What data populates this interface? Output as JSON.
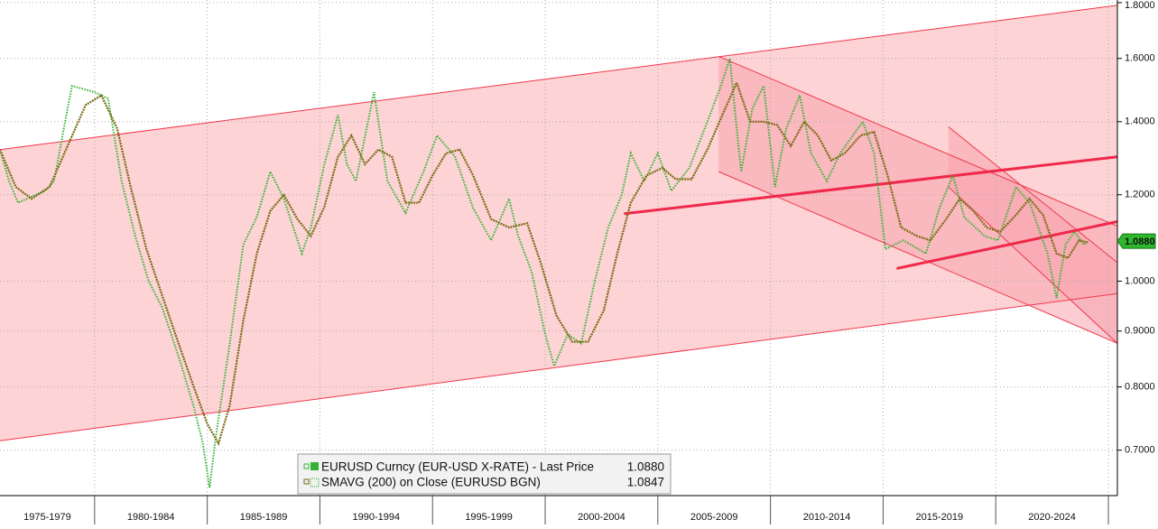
{
  "chart_data": {
    "type": "line",
    "ylog": true,
    "grid": true,
    "xlim": [
      1975.8,
      2025.4
    ],
    "ylim": [
      0.636,
      1.81
    ],
    "yticks": [
      {
        "value": 0.7,
        "label": "0.7000"
      },
      {
        "value": 0.8,
        "label": "0.8000"
      },
      {
        "value": 0.9,
        "label": "0.9000"
      },
      {
        "value": 1.0,
        "label": "1.0000"
      },
      {
        "value": 1.2,
        "label": "1.2000"
      },
      {
        "value": 1.4,
        "label": "1.4000"
      },
      {
        "value": 1.6,
        "label": "1.6000"
      },
      {
        "value": 1.8,
        "label": "1.8000"
      }
    ],
    "x_bands": [
      {
        "from": 1975,
        "to": 1980,
        "label": "1975-1979"
      },
      {
        "from": 1980,
        "to": 1985,
        "label": "1980-1984"
      },
      {
        "from": 1985,
        "to": 1990,
        "label": "1985-1989"
      },
      {
        "from": 1990,
        "to": 1995,
        "label": "1990-1994"
      },
      {
        "from": 1995,
        "to": 2000,
        "label": "1995-1999"
      },
      {
        "from": 2000,
        "to": 2005,
        "label": "2000-2004"
      },
      {
        "from": 2005,
        "to": 2010,
        "label": "2005-2009"
      },
      {
        "from": 2010,
        "to": 2015,
        "label": "2010-2014"
      },
      {
        "from": 2015,
        "to": 2020,
        "label": "2015-2019"
      },
      {
        "from": 2020,
        "to": 2025,
        "label": "2020-2024"
      }
    ],
    "channels": [
      {
        "fill": "#fdd3d5",
        "color": "#f0384a",
        "upper": {
          "x": [
            1975.8,
            2025.4
          ],
          "values": [
            1.32,
            1.79
          ]
        },
        "lower": {
          "x": [
            1975.8,
            2025.4
          ],
          "values": [
            0.714,
            0.974
          ]
        }
      },
      {
        "fill": "#f7a3ad",
        "color": "#f0384a",
        "upper": {
          "x": [
            2007.7,
            2025.4
          ],
          "values": [
            1.607,
            1.123
          ]
        },
        "lower": {
          "x": [
            2007.7,
            2025.4
          ],
          "values": [
            1.26,
            0.877
          ]
        }
      },
      {
        "fill": "#f7a3ad",
        "color": "#f0384a",
        "upper": {
          "x": [
            2017.9,
            2025.4
          ],
          "values": [
            1.385,
            1.04
          ]
        },
        "lower": {
          "x": [
            2017.9,
            2025.4
          ],
          "values": [
            1.22,
            0.877
          ]
        }
      }
    ],
    "trend_lines": [
      {
        "color": "#f0284a",
        "x": [
          2003.5,
          2025.4
        ],
        "values": [
          1.153,
          1.3
        ]
      },
      {
        "color": "#f0284a",
        "x": [
          2015.6,
          2025.4
        ],
        "values": [
          1.027,
          1.134
        ]
      }
    ],
    "series": [
      {
        "name": "EURUSD Curncy (EUR-USD X-RATE) - Last Price",
        "color": "#33b233",
        "x": [
          1975.8,
          1976.2,
          1976.6,
          1977.8,
          1978.2,
          1978.8,
          1979.0,
          1980.0,
          1980.6,
          1981.2,
          1981.8,
          1982.4,
          1983.0,
          1983.8,
          1984.4,
          1984.8,
          1985.1,
          1985.4,
          1986.0,
          1986.6,
          1987.2,
          1987.8,
          1988.4,
          1989.2,
          1989.6,
          1990.2,
          1990.8,
          1991.2,
          1991.6,
          1992.4,
          1993.0,
          1993.8,
          1994.6,
          1995.2,
          1996.0,
          1996.8,
          1997.6,
          1998.4,
          1998.8,
          1999.4,
          2000.0,
          2000.4,
          2001.0,
          2001.6,
          2002.2,
          2002.8,
          2003.4,
          2003.8,
          2004.4,
          2005.0,
          2005.6,
          2006.4,
          2007.2,
          2007.8,
          2008.2,
          2008.5,
          2008.7,
          2009.2,
          2009.7,
          2010.2,
          2010.7,
          2011.3,
          2011.8,
          2012.5,
          2013.1,
          2014.1,
          2014.6,
          2015.1,
          2015.9,
          2016.9,
          2017.5,
          2018.1,
          2018.6,
          2019.5,
          2020.1,
          2020.9,
          2021.5,
          2022.3,
          2022.7,
          2023.1,
          2023.5,
          2023.9,
          2024.1
        ],
        "values": [
          1.32,
          1.235,
          1.18,
          1.21,
          1.235,
          1.44,
          1.51,
          1.49,
          1.47,
          1.235,
          1.1,
          1.0,
          0.946,
          0.844,
          0.767,
          0.711,
          0.647,
          0.725,
          0.877,
          1.08,
          1.145,
          1.26,
          1.19,
          1.06,
          1.12,
          1.28,
          1.42,
          1.28,
          1.235,
          1.49,
          1.235,
          1.155,
          1.26,
          1.36,
          1.3,
          1.167,
          1.09,
          1.19,
          1.1,
          1.02,
          0.894,
          0.836,
          0.894,
          0.877,
          1.0,
          1.12,
          1.2,
          1.31,
          1.235,
          1.31,
          1.21,
          1.27,
          1.4,
          1.51,
          1.6,
          1.38,
          1.26,
          1.44,
          1.51,
          1.22,
          1.38,
          1.48,
          1.31,
          1.235,
          1.31,
          1.4,
          1.31,
          1.07,
          1.09,
          1.06,
          1.167,
          1.25,
          1.145,
          1.1,
          1.09,
          1.22,
          1.18,
          1.06,
          0.965,
          1.08,
          1.11,
          1.08,
          1.088
        ],
        "last_value": 1.088,
        "last_value_label": "1.0880"
      },
      {
        "name": "SMAVG (200)  on Close (EURUSD BGN)",
        "color": "#7a6a12",
        "x": [
          1975.8,
          1976.5,
          1977.2,
          1978.0,
          1978.8,
          1979.6,
          1980.3,
          1981.0,
          1981.6,
          1982.3,
          1983.0,
          1983.7,
          1984.4,
          1985.0,
          1985.5,
          1986.0,
          1986.6,
          1987.2,
          1987.8,
          1988.4,
          1989.0,
          1989.6,
          1990.2,
          1990.8,
          1991.4,
          1992.0,
          1992.6,
          1993.2,
          1993.8,
          1994.4,
          1995.0,
          1995.6,
          1996.2,
          1996.8,
          1997.6,
          1998.4,
          1999.2,
          1999.8,
          2000.5,
          2001.2,
          2001.9,
          2002.6,
          2003.2,
          2003.8,
          2004.5,
          2005.2,
          2005.8,
          2006.5,
          2007.2,
          2007.8,
          2008.5,
          2009.1,
          2009.7,
          2010.3,
          2010.9,
          2011.5,
          2012.1,
          2012.7,
          2013.3,
          2014.0,
          2014.6,
          2015.2,
          2015.8,
          2016.5,
          2017.1,
          2017.8,
          2018.4,
          2019.0,
          2019.6,
          2020.2,
          2020.9,
          2021.5,
          2022.1,
          2022.7,
          2023.2,
          2023.7,
          2024.1
        ],
        "values": [
          1.32,
          1.22,
          1.19,
          1.22,
          1.33,
          1.45,
          1.48,
          1.38,
          1.22,
          1.07,
          0.97,
          0.88,
          0.8,
          0.74,
          0.71,
          0.77,
          0.92,
          1.06,
          1.16,
          1.2,
          1.14,
          1.1,
          1.17,
          1.3,
          1.36,
          1.28,
          1.32,
          1.3,
          1.18,
          1.18,
          1.25,
          1.31,
          1.32,
          1.25,
          1.14,
          1.12,
          1.13,
          1.04,
          0.93,
          0.88,
          0.88,
          0.94,
          1.06,
          1.18,
          1.25,
          1.27,
          1.24,
          1.24,
          1.32,
          1.41,
          1.52,
          1.4,
          1.4,
          1.39,
          1.33,
          1.4,
          1.36,
          1.29,
          1.31,
          1.36,
          1.37,
          1.25,
          1.12,
          1.1,
          1.09,
          1.14,
          1.19,
          1.16,
          1.12,
          1.11,
          1.15,
          1.19,
          1.15,
          1.06,
          1.05,
          1.09,
          1.0847
        ],
        "last_value": 1.0847
      }
    ]
  }
}
